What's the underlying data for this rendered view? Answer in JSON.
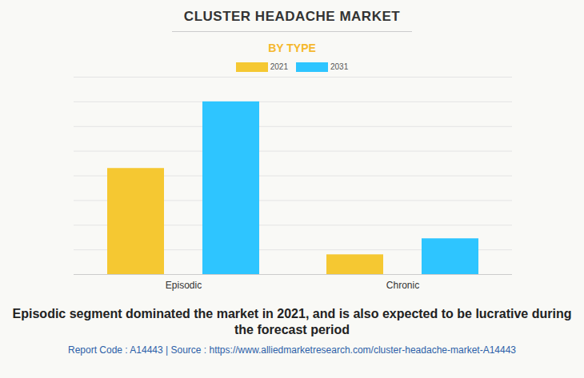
{
  "chart_data": {
    "type": "bar",
    "title": "CLUSTER HEADACHE MARKET",
    "subtitle": "BY TYPE",
    "caption": "Episodic segment dominated the market in 2021, and is also expected to be lucrative during the forecast period",
    "source": "Report Code : A14443  |  Source : https://www.alliedmarketresearch.com/cluster-headache-market-A14443",
    "categories": [
      "Episodic",
      "Chronic"
    ],
    "series": [
      {
        "name": "2021",
        "color": "#f5c832",
        "values": [
          4.3,
          0.8
        ]
      },
      {
        "name": "2031",
        "color": "#2ec5ff",
        "values": [
          7.0,
          1.45
        ]
      }
    ],
    "ylim": [
      0,
      8
    ],
    "yticks": [
      0,
      1,
      2,
      3,
      4,
      5,
      6,
      7,
      8
    ],
    "grid": true,
    "tick_labels": "x"
  }
}
